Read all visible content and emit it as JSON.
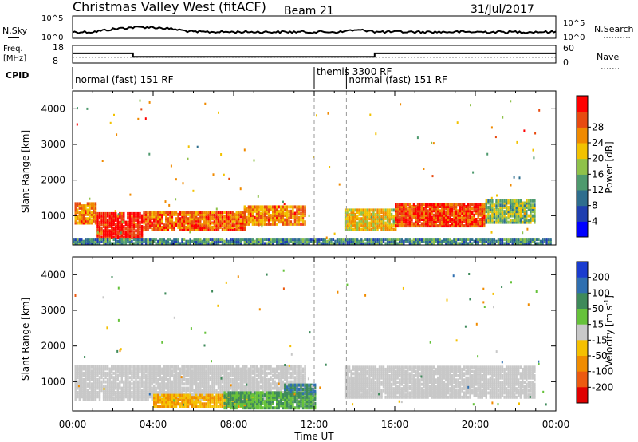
{
  "header": {
    "station": "Christmas Valley West (fitACF)",
    "beam": "Beam 21",
    "date": "31/Jul/2017"
  },
  "strip_labels": {
    "nsky": "N.Sky",
    "nsky_ticks": [
      "10^5",
      "10^0"
    ],
    "nsearch": "N.Search",
    "nsearch_ticks": [
      "10^5",
      "10^0"
    ],
    "freq": [
      "Freq.",
      "[MHz]"
    ],
    "freq_ticks": [
      "18",
      "8"
    ],
    "nave": "Nave",
    "nave_ticks": [
      "60",
      "0"
    ],
    "cpid": "CPID"
  },
  "cpid_segments": [
    {
      "label": "normal (fast) 151 RF",
      "start": 0
    },
    {
      "label": "themis 3300 RF",
      "start": 12
    },
    {
      "label": "normal (fast) 151 RF",
      "start": 13.6
    }
  ],
  "freq_trace": [
    [
      0,
      13.5
    ],
    [
      3,
      13.5
    ],
    [
      3,
      11.5
    ],
    [
      15,
      11.5
    ],
    [
      15,
      13.5
    ],
    [
      24,
      13.5
    ]
  ],
  "nave_trace": [
    [
      0,
      20
    ],
    [
      24,
      20
    ]
  ],
  "chart_data": [
    {
      "type": "heatmap",
      "title": "Power",
      "ylabel": "Slant Range [km]",
      "xlabel": "Time UT",
      "xlim": [
        0,
        24
      ],
      "ylim": [
        180,
        4500
      ],
      "yticks": [
        "1000",
        "2000",
        "3000",
        "4000"
      ],
      "colorbar": {
        "label": "Power [dB]",
        "ticks": [
          "4",
          "8",
          "12",
          "16",
          "20",
          "24",
          "28"
        ],
        "range": [
          0,
          30
        ],
        "colors": [
          "#0000ff",
          "#1f3fb0",
          "#2e6e8e",
          "#4e9a6e",
          "#8fc24a",
          "#f2c200",
          "#f08a00",
          "#e84a10",
          "#ff0000"
        ]
      },
      "blocks": [
        {
          "t0": 0.1,
          "t1": 1.2,
          "r0": 780,
          "r1": 1350,
          "level": 22
        },
        {
          "t0": 1.2,
          "t1": 3.5,
          "r0": 380,
          "r1": 1100,
          "level": 28
        },
        {
          "t0": 3.5,
          "t1": 8.5,
          "r0": 600,
          "r1": 1100,
          "level": 24
        },
        {
          "t0": 8.5,
          "t1": 11.5,
          "r0": 750,
          "r1": 1250,
          "level": 22
        },
        {
          "t0": 13.5,
          "t1": 16.0,
          "r0": 600,
          "r1": 1150,
          "level": 18
        },
        {
          "t0": 16.0,
          "t1": 20.5,
          "r0": 700,
          "r1": 1350,
          "level": 26
        },
        {
          "t0": 20.5,
          "t1": 23.0,
          "r0": 800,
          "r1": 1450,
          "level": 14
        },
        {
          "t0": 0.0,
          "t1": 23.8,
          "r0": 200,
          "r1": 380,
          "level": 10
        }
      ]
    },
    {
      "type": "heatmap",
      "title": "Velocity",
      "ylabel": "Slant Range [km]",
      "xlabel": "Time UT",
      "xlim": [
        0,
        24
      ],
      "ylim": [
        180,
        4500
      ],
      "yticks": [
        "1000",
        "2000",
        "3000",
        "4000"
      ],
      "xticks": [
        "00:00",
        "04:00",
        "08:00",
        "12:00",
        "16:00",
        "20:00",
        "00:00"
      ],
      "colorbar": {
        "label": "Velocity [m s^-1]",
        "ticks": [
          "200",
          "100",
          "50",
          "15",
          "-15",
          "-50",
          "-100",
          "-200"
        ],
        "colors": [
          "#1a3ccf",
          "#2f6fb0",
          "#3e8a5a",
          "#66c23a",
          "#c8c8c8",
          "#f5c000",
          "#f08c00",
          "#ec5a10",
          "#e00000"
        ]
      },
      "blocks": [
        {
          "t0": 0.1,
          "t1": 11.5,
          "r0": 500,
          "r1": 1450,
          "vel": 0
        },
        {
          "t0": 13.5,
          "t1": 23.0,
          "r0": 550,
          "r1": 1450,
          "vel": 0
        },
        {
          "t0": 4.0,
          "t1": 9.0,
          "r0": 300,
          "r1": 650,
          "vel": -50
        },
        {
          "t0": 7.5,
          "t1": 12.0,
          "r0": 250,
          "r1": 700,
          "vel": 50
        },
        {
          "t0": 10.5,
          "t1": 12.0,
          "r0": 650,
          "r1": 900,
          "vel": 100
        }
      ]
    }
  ],
  "time_markers": [
    12,
    13.6
  ],
  "axis_label_time": "Time UT"
}
